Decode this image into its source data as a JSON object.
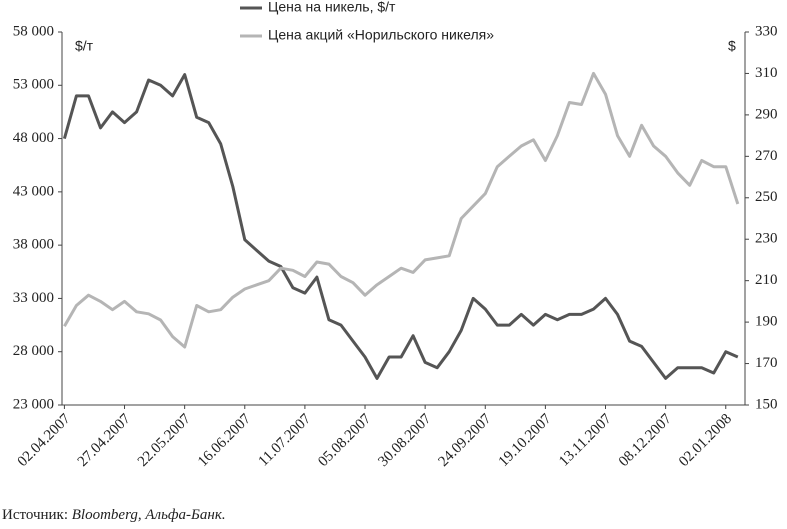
{
  "chart_data": {
    "type": "line",
    "x": [
      "02.04.2007",
      "07.04.2007",
      "12.04.2007",
      "17.04.2007",
      "22.04.2007",
      "27.04.2007",
      "02.05.2007",
      "07.05.2007",
      "12.05.2007",
      "17.05.2007",
      "22.05.2007",
      "27.05.2007",
      "01.06.2007",
      "06.06.2007",
      "11.06.2007",
      "16.06.2007",
      "21.06.2007",
      "26.06.2007",
      "01.07.2007",
      "06.07.2007",
      "11.07.2007",
      "16.07.2007",
      "21.07.2007",
      "26.07.2007",
      "31.07.2007",
      "05.08.2007",
      "10.08.2007",
      "15.08.2007",
      "20.08.2007",
      "25.08.2007",
      "30.08.2007",
      "04.09.2007",
      "09.09.2007",
      "14.09.2007",
      "19.09.2007",
      "24.09.2007",
      "29.09.2007",
      "04.10.2007",
      "09.10.2007",
      "14.10.2007",
      "19.10.2007",
      "24.10.2007",
      "29.10.2007",
      "03.11.2007",
      "08.11.2007",
      "13.11.2007",
      "18.11.2007",
      "23.11.2007",
      "28.11.2007",
      "03.12.2007",
      "08.12.2007",
      "13.12.2007",
      "18.12.2007",
      "23.12.2007",
      "28.12.2007",
      "02.01.2008",
      "07.01.2008"
    ],
    "series": [
      {
        "name": "Цена на никель, $/т",
        "color": "#555555",
        "values": [
          48000,
          52000,
          52000,
          49000,
          50500,
          49500,
          50500,
          53500,
          53000,
          52000,
          54000,
          50000,
          49500,
          47500,
          43500,
          38500,
          37500,
          36500,
          36000,
          34000,
          33500,
          35000,
          31000,
          30500,
          29000,
          27500,
          25500,
          27500,
          27500,
          29500,
          27000,
          26500,
          28000,
          30000,
          33000,
          32000,
          30500,
          30500,
          31500,
          30500,
          31500,
          31000,
          31500,
          31500,
          32000,
          33000,
          31500,
          29000,
          28500,
          27000,
          25500,
          26500,
          26500,
          26500,
          26000,
          28000,
          27500
        ]
      },
      {
        "name": "Цена акций «Норильского никеля»",
        "color": "#b5b5b5",
        "axis": "y2",
        "values": [
          188,
          198,
          203,
          200,
          196,
          200,
          195,
          194,
          191,
          183,
          178,
          198,
          195,
          196,
          202,
          206,
          208,
          210,
          216,
          215,
          212,
          219,
          218,
          212,
          209,
          203,
          208,
          212,
          216,
          214,
          220,
          221,
          222,
          240,
          246,
          252,
          265,
          270,
          275,
          278,
          268,
          280,
          296,
          295,
          310,
          300,
          280,
          270,
          285,
          275,
          270,
          262,
          256,
          268,
          265,
          265,
          247
        ]
      }
    ],
    "xlim": [
      "01.04.2007",
      "10.01.2008"
    ],
    "xticks": [
      "02.04.2007",
      "27.04.2007",
      "22.05.2007",
      "16.06.2007",
      "11.07.2007",
      "05.08.2007",
      "30.08.2007",
      "24.09.2007",
      "19.10.2007",
      "13.11.2007",
      "08.12.2007",
      "02.01.2008"
    ],
    "ylim": [
      23000,
      58000
    ],
    "yticks": [
      {
        "value": 23000,
        "label": "23 000"
      },
      {
        "value": 28000,
        "label": "28 000"
      },
      {
        "value": 33000,
        "label": "33 000"
      },
      {
        "value": 38000,
        "label": "38 000"
      },
      {
        "value": 43000,
        "label": "43 000"
      },
      {
        "value": 48000,
        "label": "48 000"
      },
      {
        "value": 53000,
        "label": "53 000"
      },
      {
        "value": 58000,
        "label": "58 000"
      }
    ],
    "y2lim": [
      150,
      330
    ],
    "y2ticks": [
      150,
      170,
      190,
      210,
      230,
      250,
      270,
      290,
      310,
      330
    ],
    "ylabel": "$/т",
    "y2label": "$",
    "legend": "top",
    "grid": false,
    "source_label": "Источник:",
    "source_text": "Bloomberg, Альфа-Банк."
  }
}
